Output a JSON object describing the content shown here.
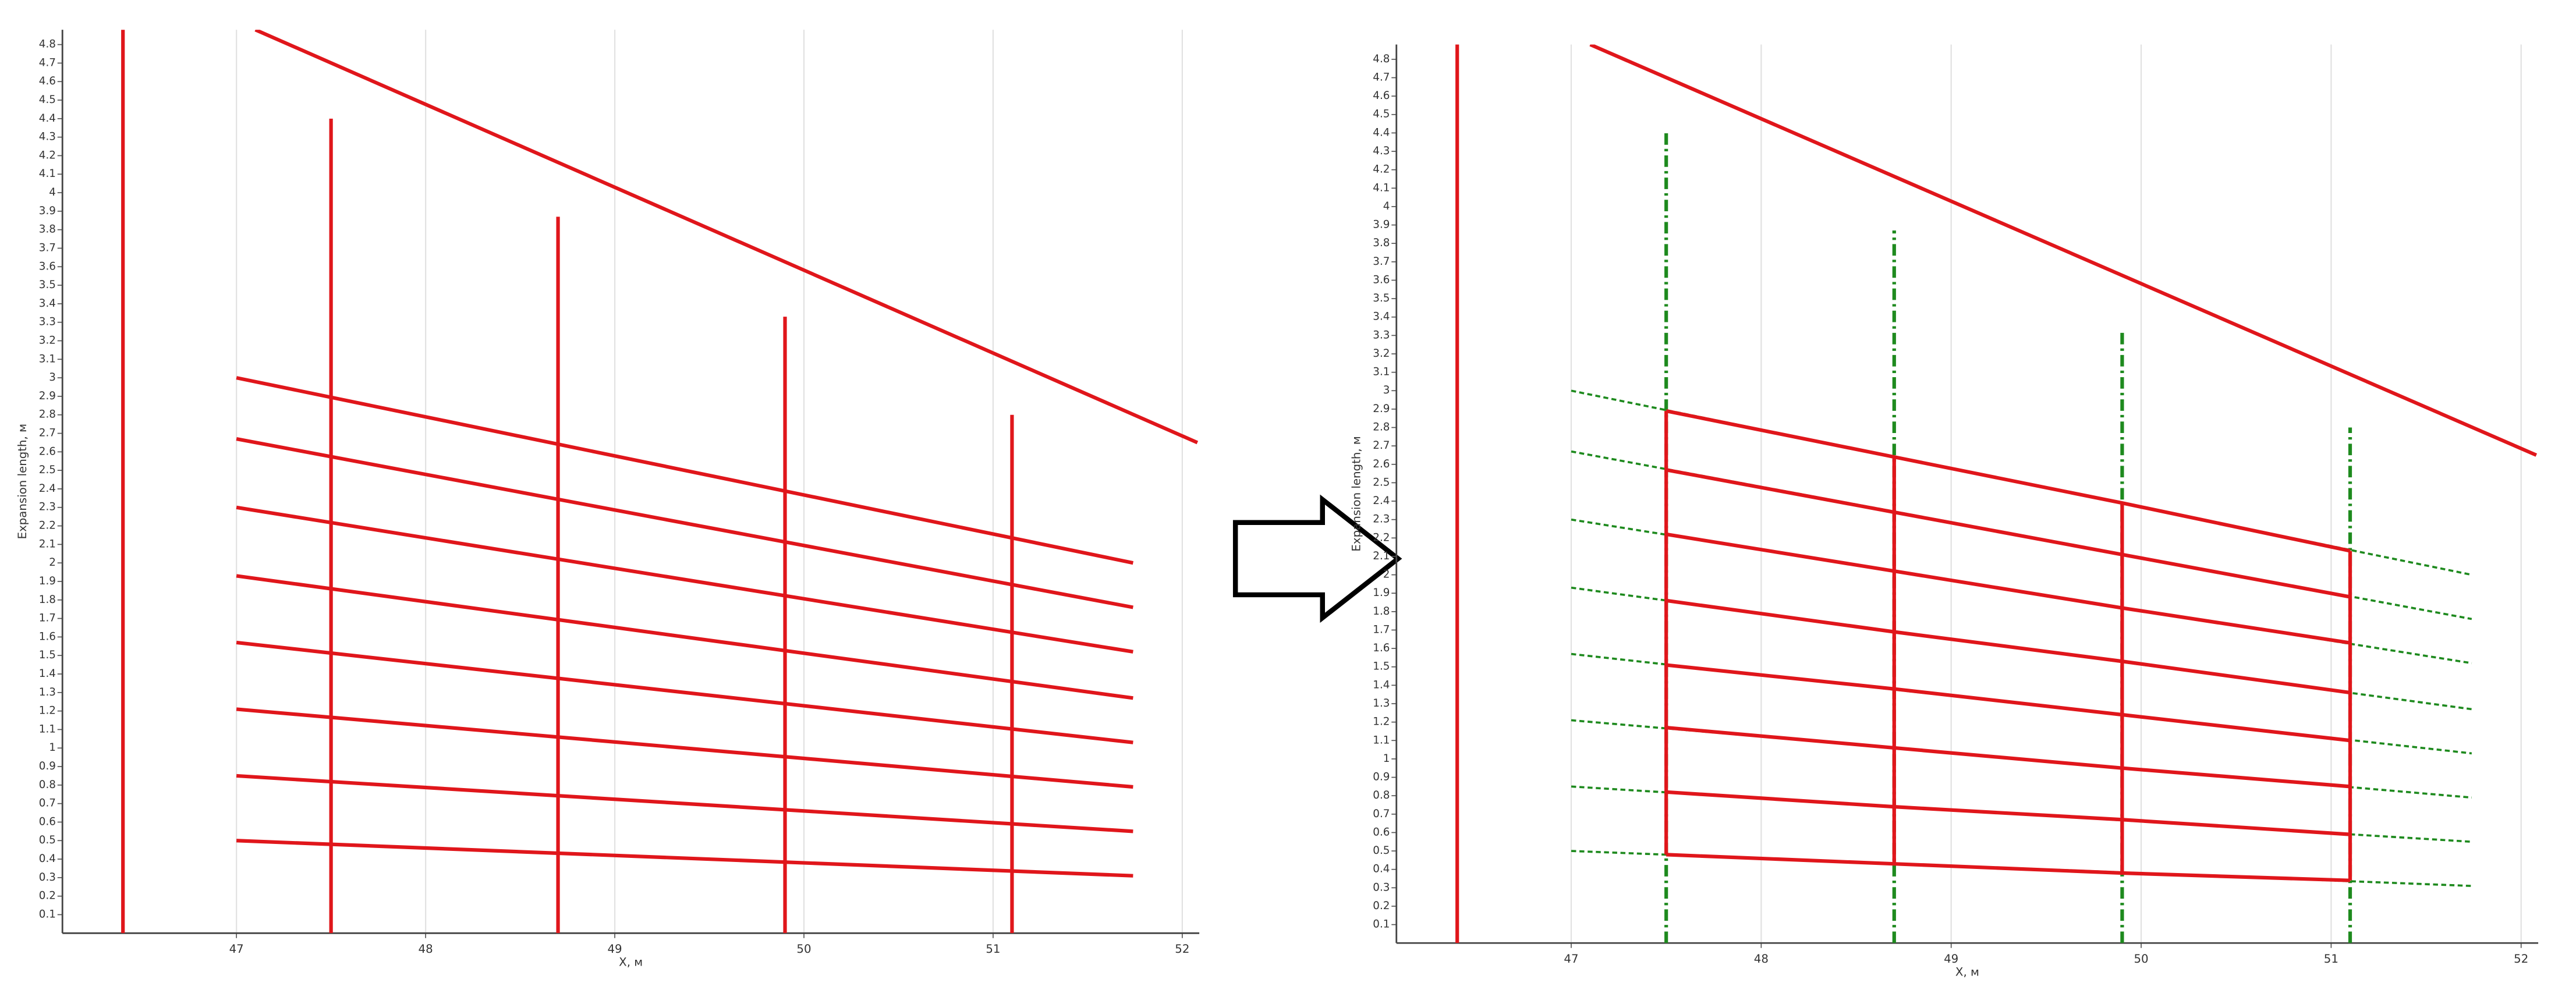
{
  "chart_data": [
    {
      "type": "line",
      "x_label": "X, м",
      "y_label": "Expansion length, м",
      "xlim": [
        46.08,
        52.09
      ],
      "ylim": [
        0,
        4.88
      ],
      "xticks": [
        47,
        48,
        49,
        50,
        51,
        52
      ],
      "yticks": [
        0.1,
        0.2,
        0.3,
        0.4,
        0.5,
        0.6,
        0.7,
        0.8,
        0.9,
        1,
        1.1,
        1.2,
        1.3,
        1.4,
        1.5,
        1.6,
        1.7,
        1.8,
        1.9,
        2,
        2.1,
        2.2,
        2.3,
        2.4,
        2.5,
        2.6,
        2.7,
        2.8,
        2.9,
        3,
        3.1,
        3.2,
        3.3,
        3.4,
        3.5,
        3.6,
        3.7,
        3.8,
        3.9,
        4,
        4.1,
        4.2,
        4.3,
        4.4,
        4.5,
        4.6,
        4.7,
        4.8
      ],
      "grid": "x",
      "series": [
        {
          "color": "#e0161b",
          "line_style": "solid",
          "x": [
            46.4,
            46.4
          ],
          "values": [
            0,
            4.88
          ]
        },
        {
          "color": "#e0161b",
          "line_style": "solid",
          "x": [
            47.1,
            52.08
          ],
          "values": [
            4.88,
            2.65
          ]
        },
        {
          "color": "#e0161b",
          "line_style": "solid",
          "x": [
            47.0,
            51.74
          ],
          "values": [
            3.0,
            2.0
          ]
        },
        {
          "color": "#e0161b",
          "line_style": "solid",
          "x": [
            47.0,
            51.74
          ],
          "values": [
            2.67,
            1.76
          ]
        },
        {
          "color": "#e0161b",
          "line_style": "solid",
          "x": [
            47.0,
            51.74
          ],
          "values": [
            2.3,
            1.52
          ]
        },
        {
          "color": "#e0161b",
          "line_style": "solid",
          "x": [
            47.0,
            51.74
          ],
          "values": [
            1.93,
            1.27
          ]
        },
        {
          "color": "#e0161b",
          "line_style": "solid",
          "x": [
            47.0,
            51.74
          ],
          "values": [
            1.57,
            1.03
          ]
        },
        {
          "color": "#e0161b",
          "line_style": "solid",
          "x": [
            47.0,
            51.74
          ],
          "values": [
            1.21,
            0.79
          ]
        },
        {
          "color": "#e0161b",
          "line_style": "solid",
          "x": [
            47.0,
            51.74
          ],
          "values": [
            0.85,
            0.55
          ]
        },
        {
          "color": "#e0161b",
          "line_style": "solid",
          "x": [
            47.0,
            51.74
          ],
          "values": [
            0.5,
            0.31
          ]
        },
        {
          "color": "#e0161b",
          "line_style": "solid",
          "x": [
            47.5,
            47.5
          ],
          "values": [
            0,
            4.4
          ]
        },
        {
          "color": "#e0161b",
          "line_style": "solid",
          "x": [
            48.7,
            48.7
          ],
          "values": [
            0,
            3.87
          ]
        },
        {
          "color": "#e0161b",
          "line_style": "solid",
          "x": [
            49.9,
            49.9
          ],
          "values": [
            0,
            3.33
          ]
        },
        {
          "color": "#e0161b",
          "line_style": "solid",
          "x": [
            51.1,
            51.1
          ],
          "values": [
            0,
            2.8
          ]
        }
      ]
    },
    {
      "type": "line",
      "x_label": "X, м",
      "y_label": "Expansion length, м",
      "xlim": [
        46.08,
        52.09
      ],
      "ylim": [
        0,
        4.88
      ],
      "xticks": [
        47,
        48,
        49,
        50,
        51,
        52
      ],
      "yticks": [
        0.1,
        0.2,
        0.3,
        0.4,
        0.5,
        0.6,
        0.7,
        0.8,
        0.9,
        1,
        1.1,
        1.2,
        1.3,
        1.4,
        1.5,
        1.6,
        1.7,
        1.8,
        1.9,
        2,
        2.1,
        2.2,
        2.3,
        2.4,
        2.5,
        2.6,
        2.7,
        2.8,
        2.9,
        3,
        3.1,
        3.2,
        3.3,
        3.4,
        3.5,
        3.6,
        3.7,
        3.8,
        3.9,
        4,
        4.1,
        4.2,
        4.3,
        4.4,
        4.5,
        4.6,
        4.7,
        4.8
      ],
      "grid": "x",
      "series": [
        {
          "color": "#1e8a1e",
          "line_style": "dashed",
          "x": [
            47.0,
            51.74
          ],
          "values": [
            3.0,
            2.0
          ]
        },
        {
          "color": "#1e8a1e",
          "line_style": "dashed",
          "x": [
            47.0,
            51.74
          ],
          "values": [
            2.67,
            1.76
          ]
        },
        {
          "color": "#1e8a1e",
          "line_style": "dashed",
          "x": [
            47.0,
            51.74
          ],
          "values": [
            2.3,
            1.52
          ]
        },
        {
          "color": "#1e8a1e",
          "line_style": "dashed",
          "x": [
            47.0,
            51.74
          ],
          "values": [
            1.93,
            1.27
          ]
        },
        {
          "color": "#1e8a1e",
          "line_style": "dashed",
          "x": [
            47.0,
            51.74
          ],
          "values": [
            1.57,
            1.03
          ]
        },
        {
          "color": "#1e8a1e",
          "line_style": "dashed",
          "x": [
            47.0,
            51.74
          ],
          "values": [
            1.21,
            0.79
          ]
        },
        {
          "color": "#1e8a1e",
          "line_style": "dashed",
          "x": [
            47.0,
            51.74
          ],
          "values": [
            0.85,
            0.55
          ]
        },
        {
          "color": "#1e8a1e",
          "line_style": "dashed",
          "x": [
            47.0,
            51.74
          ],
          "values": [
            0.5,
            0.31
          ]
        },
        {
          "color": "#1e8a1e",
          "line_style": "dashdot",
          "x": [
            47.5,
            47.5
          ],
          "values": [
            0,
            4.4
          ]
        },
        {
          "color": "#1e8a1e",
          "line_style": "dashdot",
          "x": [
            48.7,
            48.7
          ],
          "values": [
            0,
            3.87
          ]
        },
        {
          "color": "#1e8a1e",
          "line_style": "dashdot",
          "x": [
            49.9,
            49.9
          ],
          "values": [
            0,
            3.33
          ]
        },
        {
          "color": "#1e8a1e",
          "line_style": "dashdot",
          "x": [
            51.1,
            51.1
          ],
          "values": [
            0,
            2.8
          ]
        },
        {
          "color": "#e0161b",
          "line_style": "solid",
          "x": [
            46.4,
            46.4
          ],
          "values": [
            0,
            4.88
          ]
        },
        {
          "color": "#e0161b",
          "line_style": "solid",
          "x": [
            47.1,
            52.08
          ],
          "values": [
            4.88,
            2.65
          ]
        },
        {
          "color": "#e0161b",
          "line_style": "solid",
          "x": [
            47.5,
            48.7,
            49.9,
            51.1
          ],
          "values": [
            2.89,
            2.64,
            2.39,
            2.13
          ]
        },
        {
          "color": "#e0161b",
          "line_style": "solid",
          "x": [
            47.5,
            48.7,
            49.9,
            51.1
          ],
          "values": [
            2.57,
            2.34,
            2.11,
            1.88
          ]
        },
        {
          "color": "#e0161b",
          "line_style": "solid",
          "x": [
            47.5,
            48.7,
            49.9,
            51.1
          ],
          "values": [
            2.22,
            2.02,
            1.82,
            1.63
          ]
        },
        {
          "color": "#e0161b",
          "line_style": "solid",
          "x": [
            47.5,
            48.7,
            49.9,
            51.1
          ],
          "values": [
            1.86,
            1.69,
            1.53,
            1.36
          ]
        },
        {
          "color": "#e0161b",
          "line_style": "solid",
          "x": [
            47.5,
            48.7,
            49.9,
            51.1
          ],
          "values": [
            1.51,
            1.38,
            1.24,
            1.1
          ]
        },
        {
          "color": "#e0161b",
          "line_style": "solid",
          "x": [
            47.5,
            48.7,
            49.9,
            51.1
          ],
          "values": [
            1.17,
            1.06,
            0.95,
            0.85
          ]
        },
        {
          "color": "#e0161b",
          "line_style": "solid",
          "x": [
            47.5,
            48.7,
            49.9,
            51.1
          ],
          "values": [
            0.82,
            0.74,
            0.67,
            0.59
          ]
        },
        {
          "color": "#e0161b",
          "line_style": "solid",
          "x": [
            47.5,
            48.7,
            49.9,
            51.1
          ],
          "values": [
            0.48,
            0.43,
            0.38,
            0.34
          ]
        },
        {
          "color": "#e0161b",
          "line_style": "solid",
          "x": [
            47.5,
            47.5
          ],
          "values": [
            0.48,
            2.89
          ]
        },
        {
          "color": "#e0161b",
          "line_style": "solid",
          "x": [
            48.7,
            48.7
          ],
          "values": [
            0.43,
            2.64
          ]
        },
        {
          "color": "#e0161b",
          "line_style": "solid",
          "x": [
            49.9,
            49.9
          ],
          "values": [
            0.38,
            2.39
          ]
        },
        {
          "color": "#e0161b",
          "line_style": "solid",
          "x": [
            51.1,
            51.1
          ],
          "values": [
            0.34,
            2.13
          ]
        }
      ]
    }
  ]
}
